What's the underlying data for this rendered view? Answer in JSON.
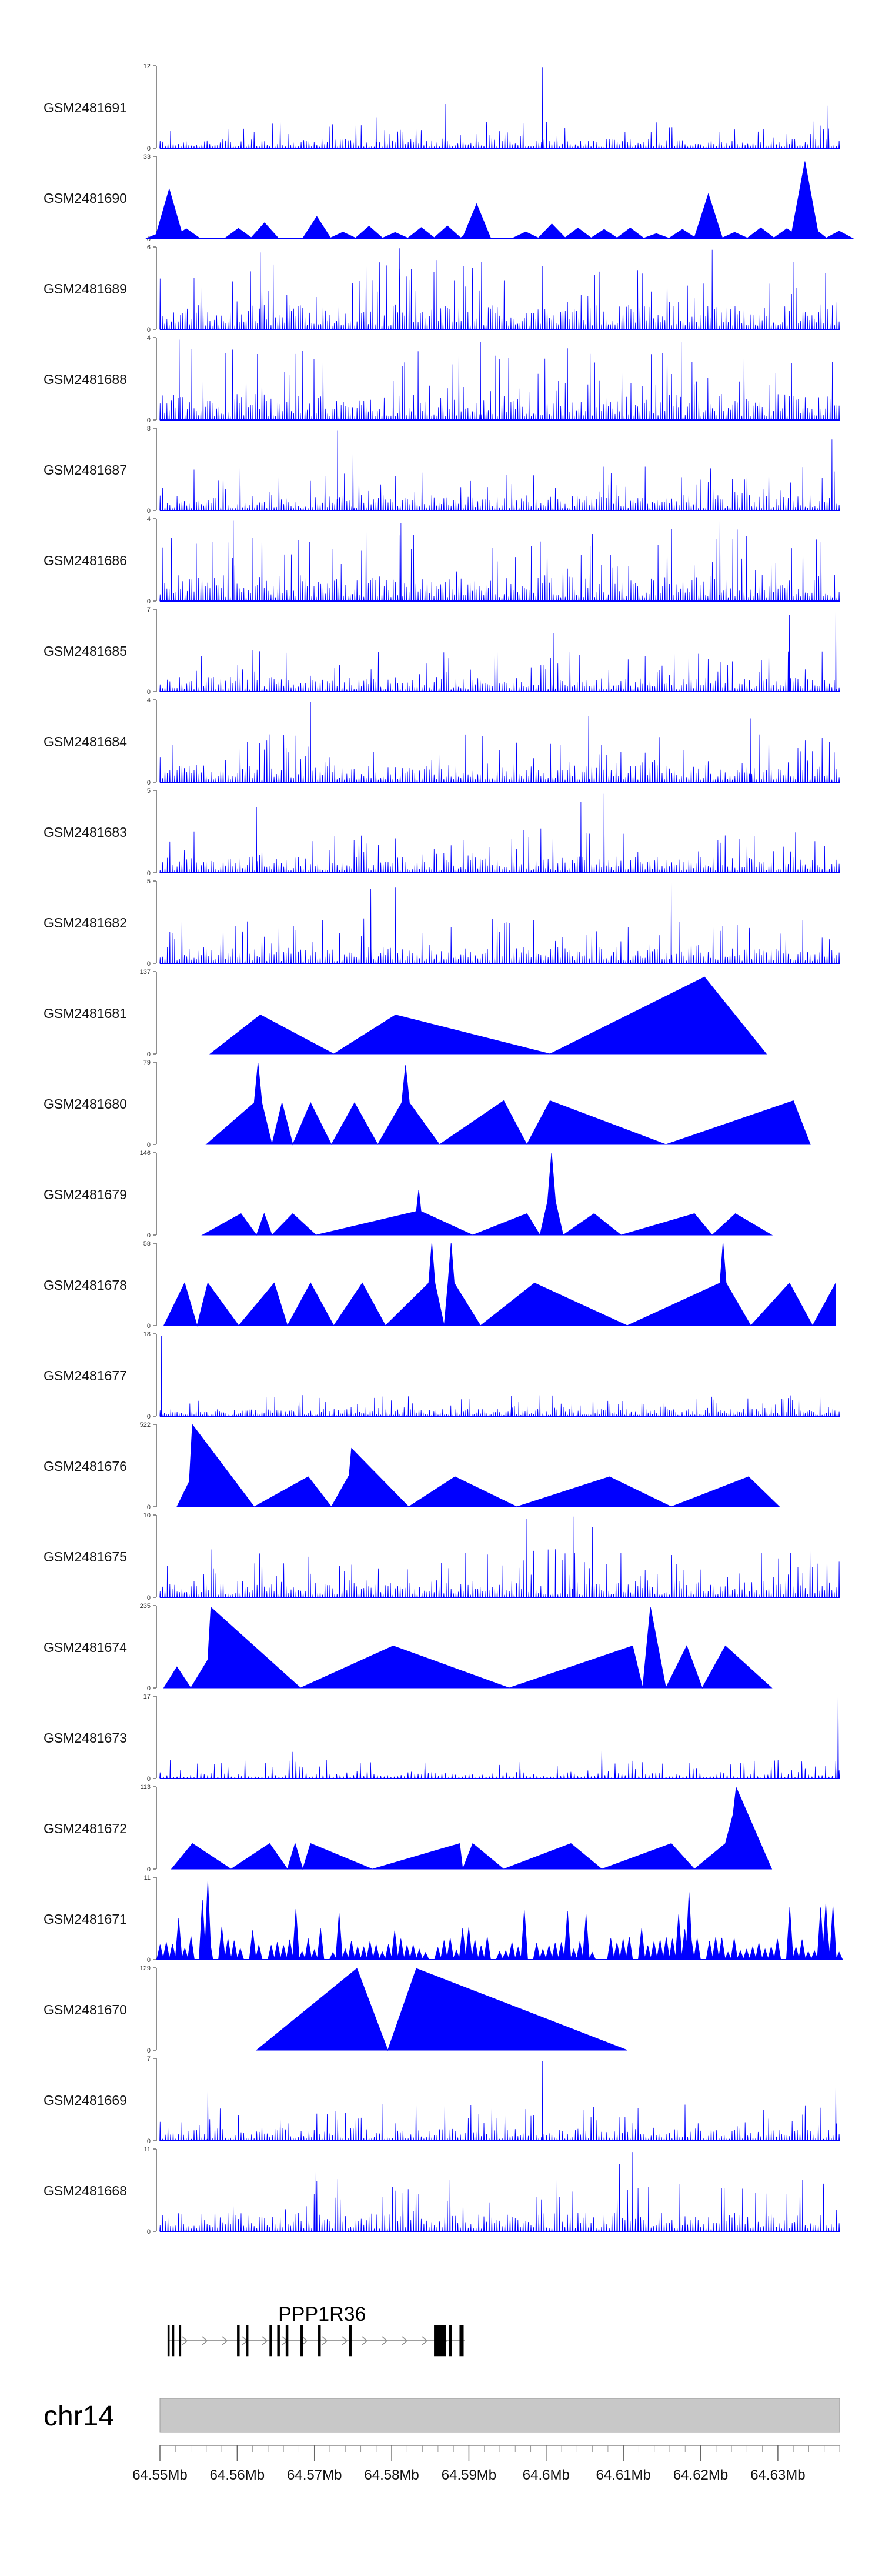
{
  "chart_data": {
    "type": "area",
    "title": "",
    "genome_axis": {
      "chromosome": "chr14",
      "xlim_mb": [
        64.55,
        64.638
      ],
      "tick_labels": [
        "64.55Mb",
        "64.56Mb",
        "64.57Mb",
        "64.58Mb",
        "64.59Mb",
        "64.6Mb",
        "64.61Mb",
        "64.62Mb",
        "64.63Mb"
      ],
      "tick_values_mb": [
        64.55,
        64.56,
        64.57,
        64.58,
        64.59,
        64.6,
        64.61,
        64.62,
        64.63
      ],
      "minor_tick_step_mb": 0.002
    },
    "gene": {
      "name": "PPP1R36",
      "strand": "+",
      "start_mb": 64.551,
      "end_mb": 64.5895,
      "exons_mb": [
        [
          64.551,
          64.5512
        ],
        [
          64.5516,
          64.5518
        ],
        [
          64.5525,
          64.5527
        ],
        [
          64.56,
          64.5603
        ],
        [
          64.5612,
          64.5614
        ],
        [
          64.5642,
          64.5645
        ],
        [
          64.5652,
          64.5655
        ],
        [
          64.5663,
          64.5666
        ],
        [
          64.5682,
          64.5685
        ],
        [
          64.5705,
          64.5708
        ],
        [
          64.5745,
          64.5748
        ],
        [
          64.5855,
          64.587
        ],
        [
          64.5874,
          64.5878
        ],
        [
          64.5888,
          64.5893
        ]
      ]
    },
    "series": [
      {
        "name": "GSM2481691",
        "ylim": [
          0,
          12
        ],
        "style": "dense",
        "density": 260,
        "base": 1.0,
        "peaks": [
          {
            "x": 64.5995,
            "y": 11.8
          },
          {
            "x": 64.587,
            "y": 6.5
          },
          {
            "x": 64.6365,
            "y": 6.2
          },
          {
            "x": 64.578,
            "y": 4.5
          }
        ]
      },
      {
        "name": "GSM2481690",
        "ylim": [
          0,
          33
        ],
        "style": "sparse",
        "density": 26,
        "base": 5,
        "peaks": [
          {
            "x": 64.6335,
            "y": 31
          },
          {
            "x": 64.5512,
            "y": 20
          },
          {
            "x": 64.621,
            "y": 18
          },
          {
            "x": 64.591,
            "y": 14
          }
        ]
      },
      {
        "name": "GSM2481689",
        "ylim": [
          0,
          6
        ],
        "style": "dense",
        "density": 300,
        "base": 1.3,
        "peaks": [
          {
            "x": 64.581,
            "y": 5.9
          },
          {
            "x": 64.6215,
            "y": 5.8
          },
          {
            "x": 64.563,
            "y": 5.6
          }
        ]
      },
      {
        "name": "GSM2481688",
        "ylim": [
          0,
          4
        ],
        "style": "dense",
        "density": 300,
        "base": 0.9,
        "peaks": [
          {
            "x": 64.5525,
            "y": 3.9
          },
          {
            "x": 64.5915,
            "y": 3.8
          },
          {
            "x": 64.6175,
            "y": 3.8
          }
        ]
      },
      {
        "name": "GSM2481687",
        "ylim": [
          0,
          8
        ],
        "style": "dense",
        "density": 280,
        "base": 1.1,
        "peaks": [
          {
            "x": 64.573,
            "y": 7.8
          },
          {
            "x": 64.637,
            "y": 6.9
          },
          {
            "x": 64.575,
            "y": 5.5
          }
        ]
      },
      {
        "name": "GSM2481686",
        "ylim": [
          0,
          4
        ],
        "style": "dense",
        "density": 300,
        "base": 0.9,
        "peaks": [
          {
            "x": 64.5595,
            "y": 3.9
          },
          {
            "x": 64.6225,
            "y": 3.9
          },
          {
            "x": 64.5812,
            "y": 3.8
          }
        ]
      },
      {
        "name": "GSM2481685",
        "ylim": [
          0,
          7
        ],
        "style": "dense",
        "density": 280,
        "base": 0.9,
        "peaks": [
          {
            "x": 64.6375,
            "y": 6.8
          },
          {
            "x": 64.6315,
            "y": 6.5
          },
          {
            "x": 64.601,
            "y": 5.0
          }
        ]
      },
      {
        "name": "GSM2481684",
        "ylim": [
          0,
          4
        ],
        "style": "dense",
        "density": 280,
        "base": 0.6,
        "peaks": [
          {
            "x": 64.5695,
            "y": 3.9
          },
          {
            "x": 64.6055,
            "y": 3.2
          },
          {
            "x": 64.6265,
            "y": 3.1
          }
        ]
      },
      {
        "name": "GSM2481683",
        "ylim": [
          0,
          5
        ],
        "style": "dense",
        "density": 280,
        "base": 0.7,
        "peaks": [
          {
            "x": 64.6075,
            "y": 4.8
          },
          {
            "x": 64.6045,
            "y": 4.3
          },
          {
            "x": 64.5625,
            "y": 4.0
          }
        ]
      },
      {
        "name": "GSM2481682",
        "ylim": [
          0,
          5
        ],
        "style": "dense",
        "density": 280,
        "base": 0.7,
        "peaks": [
          {
            "x": 64.6162,
            "y": 4.9
          },
          {
            "x": 64.5805,
            "y": 4.6
          },
          {
            "x": 64.5773,
            "y": 4.5
          }
        ]
      },
      {
        "name": "GSM2481681",
        "ylim": [
          0,
          137
        ],
        "style": "triangles",
        "density": 0,
        "base": 0,
        "peaks": [
          {
            "x": 64.5565,
            "y": 0
          },
          {
            "x": 64.563,
            "y": 65
          },
          {
            "x": 64.5725,
            "y": 0
          },
          {
            "x": 64.5805,
            "y": 65
          },
          {
            "x": 64.6005,
            "y": 0
          },
          {
            "x": 64.6205,
            "y": 128
          },
          {
            "x": 64.6285,
            "y": 0
          }
        ]
      },
      {
        "name": "GSM2481680",
        "ylim": [
          0,
          79
        ],
        "style": "triangles",
        "density": 0,
        "base": 0,
        "peaks": [
          {
            "x": 64.556,
            "y": 0
          },
          {
            "x": 64.5622,
            "y": 40
          },
          {
            "x": 64.5627,
            "y": 78
          },
          {
            "x": 64.5632,
            "y": 40
          },
          {
            "x": 64.5645,
            "y": 0
          },
          {
            "x": 64.5658,
            "y": 40
          },
          {
            "x": 64.5672,
            "y": 0
          },
          {
            "x": 64.5695,
            "y": 40
          },
          {
            "x": 64.5722,
            "y": 0
          },
          {
            "x": 64.5752,
            "y": 40
          },
          {
            "x": 64.5782,
            "y": 0
          },
          {
            "x": 64.5813,
            "y": 40
          },
          {
            "x": 64.5818,
            "y": 76
          },
          {
            "x": 64.5823,
            "y": 40
          },
          {
            "x": 64.5862,
            "y": 0
          },
          {
            "x": 64.5945,
            "y": 42
          },
          {
            "x": 64.5975,
            "y": 0
          },
          {
            "x": 64.6005,
            "y": 42
          },
          {
            "x": 64.6155,
            "y": 0
          },
          {
            "x": 64.632,
            "y": 42
          },
          {
            "x": 64.6342,
            "y": 0
          }
        ]
      },
      {
        "name": "GSM2481679",
        "ylim": [
          0,
          146
        ],
        "style": "triangles",
        "density": 0,
        "base": 0,
        "peaks": [
          {
            "x": 64.5555,
            "y": 0
          },
          {
            "x": 64.5605,
            "y": 38
          },
          {
            "x": 64.5625,
            "y": 0
          },
          {
            "x": 64.5635,
            "y": 38
          },
          {
            "x": 64.5645,
            "y": 0
          },
          {
            "x": 64.5672,
            "y": 38
          },
          {
            "x": 64.5702,
            "y": 0
          },
          {
            "x": 64.5832,
            "y": 42
          },
          {
            "x": 64.5835,
            "y": 80
          },
          {
            "x": 64.5838,
            "y": 42
          },
          {
            "x": 64.5905,
            "y": 0
          },
          {
            "x": 64.5975,
            "y": 38
          },
          {
            "x": 64.5992,
            "y": 0
          },
          {
            "x": 64.6002,
            "y": 60
          },
          {
            "x": 64.6007,
            "y": 145
          },
          {
            "x": 64.6012,
            "y": 60
          },
          {
            "x": 64.6022,
            "y": 0
          },
          {
            "x": 64.6062,
            "y": 38
          },
          {
            "x": 64.6097,
            "y": 0
          },
          {
            "x": 64.6192,
            "y": 38
          },
          {
            "x": 64.6215,
            "y": 0
          },
          {
            "x": 64.6245,
            "y": 38
          },
          {
            "x": 64.6292,
            "y": 0
          }
        ]
      },
      {
        "name": "GSM2481678",
        "ylim": [
          0,
          58
        ],
        "style": "triangles",
        "density": 0,
        "base": 0,
        "peaks": [
          {
            "x": 64.5505,
            "y": 0
          },
          {
            "x": 64.5532,
            "y": 30
          },
          {
            "x": 64.5548,
            "y": 0
          },
          {
            "x": 64.5562,
            "y": 30
          },
          {
            "x": 64.5602,
            "y": 0
          },
          {
            "x": 64.5648,
            "y": 30
          },
          {
            "x": 64.5665,
            "y": 0
          },
          {
            "x": 64.5695,
            "y": 30
          },
          {
            "x": 64.5725,
            "y": 0
          },
          {
            "x": 64.5762,
            "y": 30
          },
          {
            "x": 64.5792,
            "y": 0
          },
          {
            "x": 64.5848,
            "y": 30
          },
          {
            "x": 64.5852,
            "y": 58
          },
          {
            "x": 64.5856,
            "y": 30
          },
          {
            "x": 64.5868,
            "y": 0
          },
          {
            "x": 64.5873,
            "y": 30
          },
          {
            "x": 64.5877,
            "y": 58
          },
          {
            "x": 64.5881,
            "y": 30
          },
          {
            "x": 64.5915,
            "y": 0
          },
          {
            "x": 64.5985,
            "y": 30
          },
          {
            "x": 64.6105,
            "y": 0
          },
          {
            "x": 64.6225,
            "y": 30
          },
          {
            "x": 64.6229,
            "y": 58
          },
          {
            "x": 64.6233,
            "y": 30
          },
          {
            "x": 64.6265,
            "y": 0
          },
          {
            "x": 64.6315,
            "y": 30
          },
          {
            "x": 64.6345,
            "y": 0
          },
          {
            "x": 64.6375,
            "y": 30
          }
        ]
      },
      {
        "name": "GSM2481677",
        "ylim": [
          0,
          18
        ],
        "style": "dense",
        "density": 320,
        "base": 1.2,
        "peaks": [
          {
            "x": 64.5502,
            "y": 17.5
          },
          {
            "x": 64.5502,
            "y": 12
          },
          {
            "x": 64.5955,
            "y": 4.5
          }
        ]
      },
      {
        "name": "GSM2481676",
        "ylim": [
          0,
          522
        ],
        "style": "triangles",
        "density": 0,
        "base": 0,
        "peaks": [
          {
            "x": 64.5522,
            "y": 0
          },
          {
            "x": 64.5538,
            "y": 160
          },
          {
            "x": 64.5542,
            "y": 520
          },
          {
            "x": 64.5622,
            "y": 0
          },
          {
            "x": 64.5692,
            "y": 190
          },
          {
            "x": 64.5722,
            "y": 0
          },
          {
            "x": 64.5745,
            "y": 200
          },
          {
            "x": 64.5748,
            "y": 370
          },
          {
            "x": 64.5822,
            "y": 0
          },
          {
            "x": 64.5882,
            "y": 190
          },
          {
            "x": 64.5962,
            "y": 0
          },
          {
            "x": 64.6082,
            "y": 190
          },
          {
            "x": 64.6162,
            "y": 0
          },
          {
            "x": 64.6262,
            "y": 190
          },
          {
            "x": 64.6302,
            "y": 0
          }
        ]
      },
      {
        "name": "GSM2481675",
        "ylim": [
          0,
          10
        ],
        "style": "dense",
        "density": 280,
        "base": 1.5,
        "peaks": [
          {
            "x": 64.6035,
            "y": 9.8
          },
          {
            "x": 64.5975,
            "y": 9.5
          },
          {
            "x": 64.606,
            "y": 8.5
          }
        ]
      },
      {
        "name": "GSM2481674",
        "ylim": [
          0,
          235
        ],
        "style": "triangles",
        "density": 0,
        "base": 0,
        "peaks": [
          {
            "x": 64.5505,
            "y": 0
          },
          {
            "x": 64.5522,
            "y": 60
          },
          {
            "x": 64.554,
            "y": 0
          },
          {
            "x": 64.5562,
            "y": 80
          },
          {
            "x": 64.5566,
            "y": 230
          },
          {
            "x": 64.5682,
            "y": 0
          },
          {
            "x": 64.5802,
            "y": 120
          },
          {
            "x": 64.5952,
            "y": 0
          },
          {
            "x": 64.6112,
            "y": 120
          },
          {
            "x": 64.6125,
            "y": 0
          },
          {
            "x": 64.6135,
            "y": 230
          },
          {
            "x": 64.6155,
            "y": 0
          },
          {
            "x": 64.6182,
            "y": 120
          },
          {
            "x": 64.6202,
            "y": 0
          },
          {
            "x": 64.6232,
            "y": 120
          },
          {
            "x": 64.6292,
            "y": 0
          }
        ]
      },
      {
        "name": "GSM2481673",
        "ylim": [
          0,
          17
        ],
        "style": "dense",
        "density": 200,
        "base": 1.0,
        "peaks": [
          {
            "x": 64.6378,
            "y": 16.8
          },
          {
            "x": 64.5672,
            "y": 5.5
          },
          {
            "x": 64.6072,
            "y": 5.8
          }
        ]
      },
      {
        "name": "GSM2481672",
        "ylim": [
          0,
          113
        ],
        "style": "triangles",
        "density": 0,
        "base": 0,
        "peaks": [
          {
            "x": 64.5515,
            "y": 0
          },
          {
            "x": 64.5542,
            "y": 35
          },
          {
            "x": 64.5592,
            "y": 0
          },
          {
            "x": 64.5642,
            "y": 35
          },
          {
            "x": 64.5665,
            "y": 0
          },
          {
            "x": 64.5675,
            "y": 35
          },
          {
            "x": 64.5685,
            "y": 0
          },
          {
            "x": 64.5695,
            "y": 35
          },
          {
            "x": 64.5775,
            "y": 0
          },
          {
            "x": 64.5888,
            "y": 35
          },
          {
            "x": 64.5892,
            "y": 0
          },
          {
            "x": 64.5905,
            "y": 35
          },
          {
            "x": 64.5945,
            "y": 0
          },
          {
            "x": 64.6032,
            "y": 35
          },
          {
            "x": 64.6072,
            "y": 0
          },
          {
            "x": 64.6162,
            "y": 35
          },
          {
            "x": 64.6192,
            "y": 0
          },
          {
            "x": 64.6232,
            "y": 35
          },
          {
            "x": 64.6242,
            "y": 75
          },
          {
            "x": 64.6246,
            "y": 112
          },
          {
            "x": 64.6292,
            "y": 0
          }
        ]
      },
      {
        "name": "GSM2481671",
        "ylim": [
          0,
          11
        ],
        "style": "sparse",
        "density": 110,
        "base": 2.4,
        "peaks": [
          {
            "x": 64.5562,
            "y": 10.5
          },
          {
            "x": 64.5555,
            "y": 8.0
          },
          {
            "x": 64.6185,
            "y": 9.0
          },
          {
            "x": 64.6362,
            "y": 7.5
          }
        ]
      },
      {
        "name": "GSM2481670",
        "ylim": [
          0,
          129
        ],
        "style": "triangles",
        "density": 0,
        "base": 0,
        "peaks": [
          {
            "x": 64.5625,
            "y": 0
          },
          {
            "x": 64.5755,
            "y": 128
          },
          {
            "x": 64.5795,
            "y": 0
          },
          {
            "x": 64.5832,
            "y": 128
          },
          {
            "x": 64.6105,
            "y": 0
          }
        ]
      },
      {
        "name": "GSM2481669",
        "ylim": [
          0,
          7
        ],
        "style": "dense",
        "density": 260,
        "base": 0.8,
        "peaks": [
          {
            "x": 64.5995,
            "y": 6.8
          },
          {
            "x": 64.6375,
            "y": 4.5
          },
          {
            "x": 64.5562,
            "y": 4.2
          }
        ]
      },
      {
        "name": "GSM2481668",
        "ylim": [
          0,
          11
        ],
        "style": "dense",
        "density": 260,
        "base": 1.8,
        "peaks": [
          {
            "x": 64.6112,
            "y": 10.6
          },
          {
            "x": 64.6095,
            "y": 9.0
          },
          {
            "x": 64.5702,
            "y": 8.0
          }
        ]
      }
    ]
  }
}
